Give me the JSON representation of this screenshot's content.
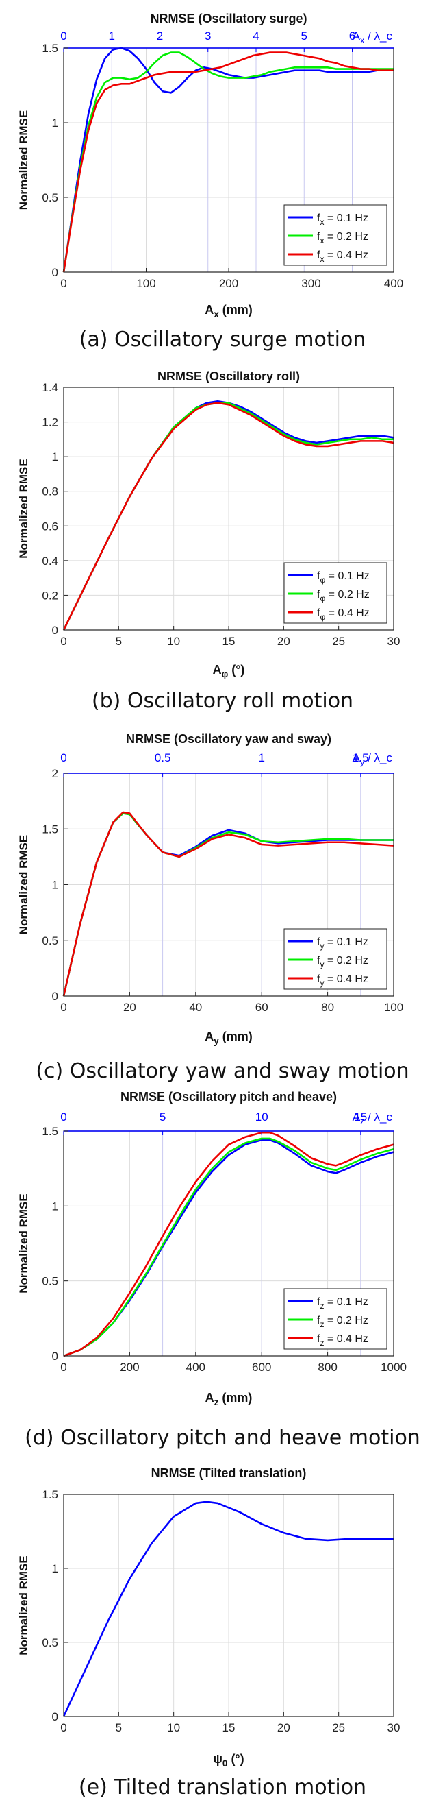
{
  "chart_data": [
    {
      "type": "line",
      "title": "NRMSE (Oscillatory surge)",
      "xlabel": "A_x (mm)",
      "ylabel": "Normalized RMSE",
      "xlim": [
        0,
        400
      ],
      "ylim": [
        0,
        1.5
      ],
      "xticks": [
        0,
        100,
        200,
        300,
        400
      ],
      "xticklabels": [
        "0",
        "100",
        "200",
        "300",
        "400"
      ],
      "yticks": [
        0,
        0.5,
        1,
        1.5
      ],
      "yticklabels": [
        "0",
        "0.5",
        "1",
        "1.5"
      ],
      "top_axis": {
        "label": "A_x / λ_c",
        "ticks": [
          0,
          1,
          2,
          3,
          4,
          5,
          6
        ],
        "ticklabels": [
          "0",
          "1",
          "2",
          "3",
          "4",
          "5",
          "6"
        ],
        "units_per_top": 58.3
      },
      "legend_position": "bottom-right",
      "series": [
        {
          "name": "f_x = 0.1 Hz",
          "color": "#0000ff",
          "x": [
            0,
            10,
            20,
            30,
            40,
            50,
            60,
            70,
            80,
            90,
            100,
            110,
            120,
            130,
            140,
            150,
            160,
            170,
            180,
            190,
            200,
            210,
            220,
            230,
            240,
            250,
            260,
            270,
            280,
            290,
            300,
            310,
            320,
            330,
            340,
            350,
            360,
            370,
            380,
            390,
            400
          ],
          "y": [
            0,
            0.37,
            0.74,
            1.06,
            1.29,
            1.43,
            1.49,
            1.5,
            1.48,
            1.43,
            1.36,
            1.27,
            1.21,
            1.2,
            1.24,
            1.3,
            1.35,
            1.37,
            1.36,
            1.34,
            1.32,
            1.31,
            1.3,
            1.3,
            1.31,
            1.32,
            1.33,
            1.34,
            1.35,
            1.35,
            1.35,
            1.35,
            1.34,
            1.34,
            1.34,
            1.34,
            1.34,
            1.34,
            1.35,
            1.35,
            1.35
          ]
        },
        {
          "name": "f_x = 0.2 Hz",
          "color": "#00ee00",
          "x": [
            0,
            10,
            20,
            30,
            40,
            50,
            60,
            70,
            80,
            90,
            100,
            110,
            120,
            130,
            140,
            150,
            160,
            170,
            180,
            190,
            200,
            210,
            220,
            230,
            240,
            250,
            260,
            270,
            280,
            290,
            300,
            310,
            320,
            330,
            340,
            350,
            360,
            370,
            380,
            390,
            400
          ],
          "y": [
            0,
            0.36,
            0.7,
            0.98,
            1.17,
            1.27,
            1.3,
            1.3,
            1.29,
            1.3,
            1.34,
            1.4,
            1.45,
            1.47,
            1.47,
            1.44,
            1.4,
            1.36,
            1.33,
            1.31,
            1.3,
            1.3,
            1.3,
            1.31,
            1.32,
            1.34,
            1.35,
            1.36,
            1.37,
            1.37,
            1.37,
            1.37,
            1.37,
            1.36,
            1.36,
            1.36,
            1.36,
            1.36,
            1.36,
            1.36,
            1.36
          ]
        },
        {
          "name": "f_x = 0.4 Hz",
          "color": "#ee0000",
          "x": [
            0,
            10,
            20,
            30,
            40,
            50,
            60,
            70,
            80,
            90,
            100,
            110,
            120,
            130,
            140,
            150,
            160,
            170,
            180,
            190,
            200,
            210,
            220,
            230,
            240,
            250,
            260,
            270,
            280,
            290,
            300,
            310,
            320,
            330,
            340,
            350,
            360,
            370,
            380,
            390,
            400
          ],
          "y": [
            0,
            0.35,
            0.68,
            0.95,
            1.13,
            1.22,
            1.25,
            1.26,
            1.26,
            1.28,
            1.3,
            1.32,
            1.33,
            1.34,
            1.34,
            1.34,
            1.34,
            1.35,
            1.36,
            1.37,
            1.39,
            1.41,
            1.43,
            1.45,
            1.46,
            1.47,
            1.47,
            1.47,
            1.46,
            1.45,
            1.44,
            1.43,
            1.41,
            1.4,
            1.38,
            1.37,
            1.36,
            1.36,
            1.35,
            1.35,
            1.35
          ]
        }
      ]
    },
    {
      "type": "line",
      "title": "NRMSE (Oscillatory roll)",
      "xlabel": "A_φ (°)",
      "ylabel": "Normalized RMSE",
      "xlim": [
        0,
        30
      ],
      "ylim": [
        0,
        1.4
      ],
      "xticks": [
        0,
        5,
        10,
        15,
        20,
        25,
        30
      ],
      "xticklabels": [
        "0",
        "5",
        "10",
        "15",
        "20",
        "25",
        "30"
      ],
      "yticks": [
        0,
        0.2,
        0.4,
        0.6,
        0.8,
        1,
        1.2,
        1.4
      ],
      "yticklabels": [
        "0",
        "0.2",
        "0.4",
        "0.6",
        "0.8",
        "1",
        "1.2",
        "1.4"
      ],
      "legend_position": "bottom-right",
      "series": [
        {
          "name": "f_φ = 0.1 Hz",
          "color": "#0000ff",
          "x": [
            0,
            2,
            4,
            6,
            8,
            10,
            12,
            13,
            14,
            15,
            16,
            17,
            18,
            19,
            20,
            21,
            22,
            23,
            24,
            25,
            26,
            27,
            28,
            29,
            30
          ],
          "y": [
            0,
            0.26,
            0.52,
            0.77,
            0.99,
            1.17,
            1.28,
            1.31,
            1.32,
            1.31,
            1.29,
            1.26,
            1.22,
            1.18,
            1.14,
            1.11,
            1.09,
            1.08,
            1.09,
            1.1,
            1.11,
            1.12,
            1.12,
            1.12,
            1.11
          ]
        },
        {
          "name": "f_φ = 0.2 Hz",
          "color": "#00ee00",
          "x": [
            0,
            2,
            4,
            6,
            8,
            10,
            12,
            13,
            14,
            15,
            16,
            17,
            18,
            19,
            20,
            21,
            22,
            23,
            24,
            25,
            26,
            27,
            28,
            29,
            30
          ],
          "y": [
            0,
            0.26,
            0.52,
            0.77,
            0.99,
            1.17,
            1.28,
            1.3,
            1.31,
            1.31,
            1.28,
            1.25,
            1.21,
            1.17,
            1.13,
            1.1,
            1.08,
            1.07,
            1.08,
            1.09,
            1.1,
            1.1,
            1.11,
            1.1,
            1.1
          ]
        },
        {
          "name": "f_φ = 0.4 Hz",
          "color": "#ee0000",
          "x": [
            0,
            2,
            4,
            6,
            8,
            10,
            12,
            13,
            14,
            15,
            16,
            17,
            18,
            19,
            20,
            21,
            22,
            23,
            24,
            25,
            26,
            27,
            28,
            29,
            30
          ],
          "y": [
            0,
            0.26,
            0.52,
            0.77,
            0.99,
            1.16,
            1.27,
            1.3,
            1.31,
            1.3,
            1.27,
            1.24,
            1.2,
            1.16,
            1.12,
            1.09,
            1.07,
            1.06,
            1.06,
            1.07,
            1.08,
            1.09,
            1.09,
            1.09,
            1.08
          ]
        }
      ]
    },
    {
      "type": "line",
      "title": "NRMSE (Oscillatory yaw and sway)",
      "xlabel": "A_y (mm)",
      "ylabel": "Normalized RMSE",
      "xlim": [
        0,
        100
      ],
      "ylim": [
        0,
        2
      ],
      "xticks": [
        0,
        20,
        40,
        60,
        80,
        100
      ],
      "xticklabels": [
        "0",
        "20",
        "40",
        "60",
        "80",
        "100"
      ],
      "yticks": [
        0,
        0.5,
        1,
        1.5,
        2
      ],
      "yticklabels": [
        "0",
        "0.5",
        "1",
        "1.5",
        "2"
      ],
      "top_axis": {
        "label": "A_y / λ_c",
        "ticks": [
          0,
          0.5,
          1,
          1.5
        ],
        "ticklabels": [
          "0",
          "0.5",
          "1",
          "1.5"
        ],
        "units_per_top": 60
      },
      "legend_position": "bottom-right",
      "series": [
        {
          "name": "f_y = 0.1 Hz",
          "color": "#0000ff",
          "x": [
            0,
            5,
            10,
            15,
            18,
            20,
            25,
            30,
            35,
            40,
            45,
            50,
            55,
            60,
            65,
            70,
            75,
            80,
            85,
            90,
            95,
            100
          ],
          "y": [
            0,
            0.65,
            1.2,
            1.56,
            1.64,
            1.63,
            1.45,
            1.29,
            1.26,
            1.34,
            1.44,
            1.49,
            1.46,
            1.39,
            1.37,
            1.38,
            1.39,
            1.4,
            1.4,
            1.4,
            1.4,
            1.4
          ]
        },
        {
          "name": "f_y = 0.2 Hz",
          "color": "#00ee00",
          "x": [
            0,
            5,
            10,
            15,
            18,
            20,
            25,
            30,
            35,
            40,
            45,
            50,
            55,
            60,
            65,
            70,
            75,
            80,
            85,
            90,
            95,
            100
          ],
          "y": [
            0,
            0.65,
            1.2,
            1.56,
            1.64,
            1.63,
            1.45,
            1.29,
            1.25,
            1.33,
            1.42,
            1.47,
            1.45,
            1.39,
            1.38,
            1.39,
            1.4,
            1.41,
            1.41,
            1.4,
            1.4,
            1.4
          ]
        },
        {
          "name": "f_y = 0.4 Hz",
          "color": "#ee0000",
          "x": [
            0,
            5,
            10,
            15,
            18,
            20,
            25,
            30,
            35,
            40,
            45,
            50,
            55,
            60,
            65,
            70,
            75,
            80,
            85,
            90,
            95,
            100
          ],
          "y": [
            0,
            0.65,
            1.2,
            1.56,
            1.65,
            1.64,
            1.45,
            1.29,
            1.25,
            1.32,
            1.41,
            1.45,
            1.42,
            1.36,
            1.35,
            1.36,
            1.37,
            1.38,
            1.38,
            1.37,
            1.36,
            1.35
          ]
        }
      ]
    },
    {
      "type": "line",
      "title": "NRMSE (Oscillatory pitch and heave)",
      "xlabel": "A_z (mm)",
      "ylabel": "Normalized RMSE",
      "xlim": [
        0,
        1000
      ],
      "ylim": [
        0,
        1.5
      ],
      "xticks": [
        0,
        200,
        400,
        600,
        800,
        1000
      ],
      "xticklabels": [
        "0",
        "200",
        "400",
        "600",
        "800",
        "1000"
      ],
      "yticks": [
        0,
        0.5,
        1,
        1.5
      ],
      "yticklabels": [
        "0",
        "0.5",
        "1",
        "1.5"
      ],
      "top_axis": {
        "label": "A_z / λ_c",
        "ticks": [
          0,
          5,
          10,
          15
        ],
        "ticklabels": [
          "0",
          "5",
          "10",
          "15"
        ],
        "units_per_top": 60
      },
      "legend_position": "bottom-right",
      "series": [
        {
          "name": "f_z = 0.1 Hz",
          "color": "#0000ff",
          "x": [
            0,
            50,
            100,
            150,
            200,
            250,
            300,
            350,
            400,
            450,
            500,
            550,
            600,
            625,
            650,
            700,
            750,
            800,
            825,
            850,
            900,
            950,
            1000
          ],
          "y": [
            0,
            0.04,
            0.11,
            0.22,
            0.37,
            0.54,
            0.73,
            0.91,
            1.09,
            1.23,
            1.34,
            1.41,
            1.44,
            1.44,
            1.42,
            1.35,
            1.27,
            1.23,
            1.22,
            1.24,
            1.29,
            1.33,
            1.36
          ]
        },
        {
          "name": "f_z = 0.2 Hz",
          "color": "#00ee00",
          "x": [
            0,
            50,
            100,
            150,
            200,
            250,
            300,
            350,
            400,
            450,
            500,
            550,
            600,
            625,
            650,
            700,
            750,
            800,
            825,
            850,
            900,
            950,
            1000
          ],
          "y": [
            0,
            0.04,
            0.11,
            0.22,
            0.38,
            0.55,
            0.74,
            0.93,
            1.11,
            1.25,
            1.36,
            1.42,
            1.45,
            1.45,
            1.43,
            1.37,
            1.29,
            1.25,
            1.24,
            1.26,
            1.31,
            1.35,
            1.38
          ]
        },
        {
          "name": "f_z = 0.4 Hz",
          "color": "#ee0000",
          "x": [
            0,
            50,
            100,
            150,
            200,
            250,
            300,
            350,
            400,
            450,
            500,
            550,
            600,
            625,
            650,
            700,
            750,
            800,
            825,
            850,
            900,
            950,
            1000
          ],
          "y": [
            0,
            0.04,
            0.12,
            0.25,
            0.42,
            0.6,
            0.8,
            0.99,
            1.16,
            1.3,
            1.41,
            1.46,
            1.49,
            1.49,
            1.47,
            1.4,
            1.32,
            1.28,
            1.27,
            1.29,
            1.34,
            1.38,
            1.41
          ]
        }
      ]
    },
    {
      "type": "line",
      "title": "NRMSE (Tilted translation)",
      "xlabel": "ψ_0 (°)",
      "ylabel": "Normalized RMSE",
      "xlim": [
        0,
        30
      ],
      "ylim": [
        0,
        1.5
      ],
      "xticks": [
        0,
        5,
        10,
        15,
        20,
        25,
        30
      ],
      "xticklabels": [
        "0",
        "5",
        "10",
        "15",
        "20",
        "25",
        "30"
      ],
      "yticks": [
        0,
        0.5,
        1,
        1.5
      ],
      "yticklabels": [
        "0",
        "0.5",
        "1",
        "1.5"
      ],
      "series": [
        {
          "name": "tilted translation",
          "color": "#0000ff",
          "x": [
            0,
            2,
            4,
            6,
            8,
            10,
            12,
            13,
            14,
            16,
            18,
            20,
            22,
            24,
            26,
            28,
            30
          ],
          "y": [
            0,
            0.32,
            0.64,
            0.93,
            1.17,
            1.35,
            1.44,
            1.45,
            1.44,
            1.38,
            1.3,
            1.24,
            1.2,
            1.19,
            1.2,
            1.2,
            1.2
          ]
        }
      ]
    }
  ],
  "captions": [
    "(a) Oscillatory surge motion",
    "(b) Oscillatory roll motion",
    "(c) Oscillatory yaw and sway motion",
    "(d) Oscillatory pitch and heave motion",
    "(e) Tilted translation motion"
  ]
}
